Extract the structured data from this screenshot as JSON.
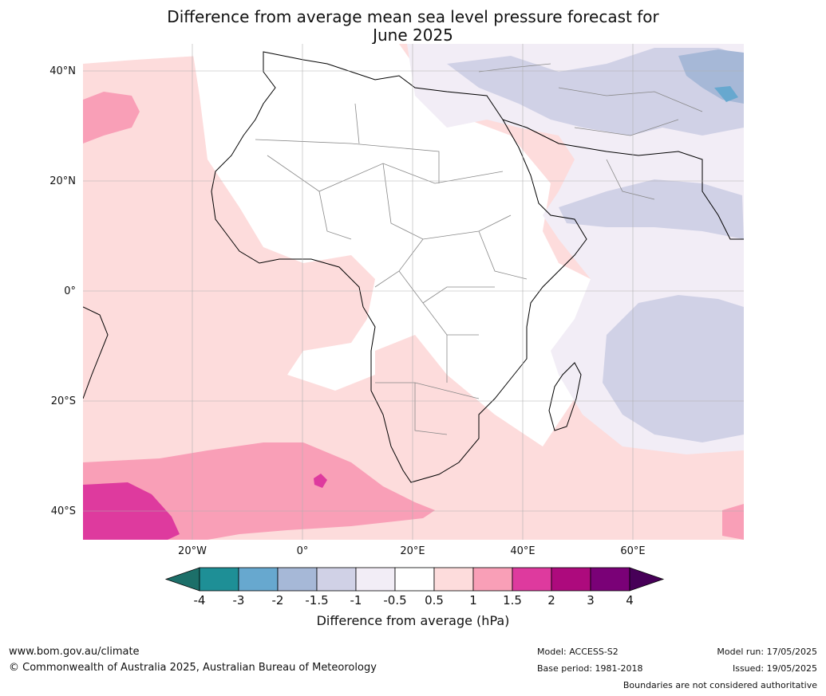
{
  "title": {
    "line1": "Difference from average mean sea level pressure forecast for",
    "line2": "June 2025"
  },
  "map": {
    "region": "Africa",
    "lat_labels": [
      "40°N",
      "20°N",
      "0°",
      "20°S",
      "40°S"
    ],
    "lon_labels": [
      "20°W",
      "0°",
      "20°E",
      "40°E",
      "60°E"
    ],
    "gridlines": true
  },
  "colorbar": {
    "title": "Difference from average (hPa)",
    "ticks": [
      "-4",
      "-3",
      "-2",
      "-1.5",
      "-1",
      "-0.5",
      "0.5",
      "1",
      "1.5",
      "2",
      "3",
      "4"
    ],
    "colors": [
      "#1c6f69",
      "#1e8f96",
      "#67a8cf",
      "#a6b8d7",
      "#d0d1e6",
      "#f2edf6",
      "#ffffff",
      "#fddcdc",
      "#f99fb7",
      "#de3a9e",
      "#ad0a7d",
      "#7a0177",
      "#470058"
    ]
  },
  "footer": {
    "website": "www.bom.gov.au/climate",
    "copyright": "© Commonwealth of Australia 2025, Australian Bureau of Meteorology",
    "model": "Model: ACCESS-S2",
    "base_period": "Base period: 1981-2018",
    "model_run": "Model run: 17/05/2025",
    "issued": "Issued: 19/05/2025",
    "disclaimer": "Boundaries are not considered authoritative"
  }
}
